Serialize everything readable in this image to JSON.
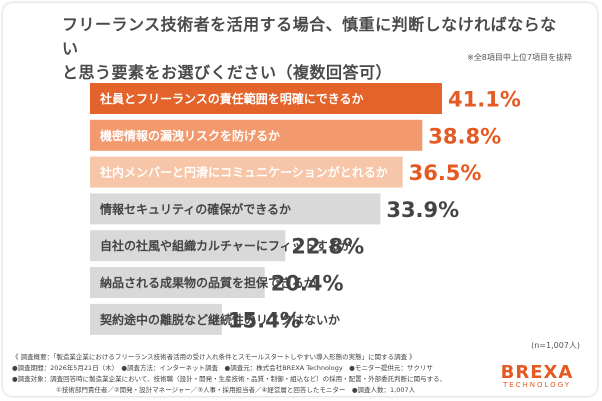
{
  "title_line1": "フリーランス技術者を活用する場合、慎重に判断しなければならない",
  "title_line2": "と思う要素をお選びください（複数回答可）",
  "note": "※全8項目中上位7項目を抜粋",
  "n_label": "(n=1,007人)",
  "footer": {
    "line1": "《 調査概要：「製造業企業におけるフリーランス技術者活用の受け入れ条件とスモールスタートしやすい導入形態の実態」に関する調査 》",
    "line2": "●調査期間：2026年5月21日（木）　●調査方法：インターネット調査　●調査元：株式会社BREXA Technology　●モニター提供元：サクリサ",
    "line3": "●調査対象：調査回答時に製造業企業において、技術職（設計・開発・生産技術・品質・制御・組込など）の採用・配置・外部委託判断に関与する、",
    "line4": "①技術部門責任者／②開発・設計マネージャー／③人事・採用担当者／④経営層と回答したモニター　●調査人数：1,007人"
  },
  "logo": {
    "brand": "BREXA",
    "sub": "TECHNOLOGY"
  },
  "colors": {
    "top1": "#e4632a",
    "top2": "#f29a6e",
    "top3": "#f7c6a8",
    "gray": "#d9d9d9",
    "pct_orange": "#e55a22",
    "pct_gray": "#444444"
  },
  "chart_data": {
    "type": "bar",
    "orientation": "horizontal",
    "categories": [
      "社員とフリーランスの責任範囲を明確にできるか",
      "機密情報の漏洩リスクを防げるか",
      "社内メンバーと円滑にコミュニケーションがとれるか",
      "情報セキュリティの確保ができるか",
      "自社の社風や組織カルチャーにフィットするか",
      "納品される成果物の品質を担保できるか",
      "契約途中の離脱など継続性のリスクはないか"
    ],
    "values": [
      41.1,
      38.8,
      36.5,
      33.9,
      22.8,
      20.4,
      15.4
    ],
    "value_labels": [
      "41.1%",
      "38.8%",
      "36.5%",
      "33.9%",
      "22.8%",
      "20.4%",
      "15.4%"
    ],
    "xlim": [
      0,
      45
    ]
  }
}
